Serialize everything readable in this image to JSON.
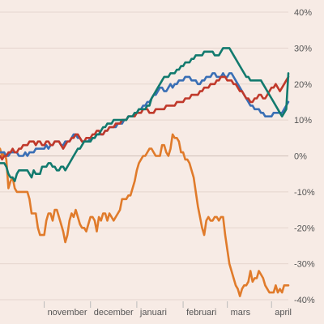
{
  "chart_data": {
    "type": "line",
    "title": "",
    "xlabel": "",
    "ylabel": "",
    "ylim": [
      -40,
      40
    ],
    "grid": true,
    "y_axis_side": "right",
    "y_ticks": [
      40,
      30,
      20,
      10,
      0,
      -10,
      -20,
      -30,
      -40
    ],
    "y_tick_labels": [
      "40%",
      "30%",
      "20%",
      "10%",
      "0%",
      "-10%",
      "-20%",
      "-30%",
      "-40%"
    ],
    "x_ticks": [
      "november",
      "december",
      "januari",
      "februari",
      "mars",
      "april"
    ],
    "x_tick_positions": [
      21,
      43,
      65,
      87,
      108,
      129
    ],
    "x_range": [
      0,
      137
    ],
    "series": [
      {
        "color": "#e07b2b",
        "values": [
          2,
          0,
          1,
          -1,
          -9,
          -7,
          -6,
          -9,
          -10,
          -10,
          -10,
          -10,
          -10,
          -10,
          -12,
          -16,
          -16,
          -16,
          -20,
          -22,
          -22,
          -22,
          -18,
          -16,
          -16,
          -18,
          -15,
          -15,
          -17,
          -19,
          -21,
          -24,
          -22,
          -18,
          -16,
          -17,
          -15,
          -17,
          -19,
          -20,
          -20,
          -21,
          -19,
          -17,
          -17,
          -18,
          -21,
          -17,
          -18,
          -16,
          -16,
          -18,
          -16,
          -17,
          -18,
          -17,
          -16,
          -15,
          -12,
          -12,
          -12,
          -11,
          -11,
          -9,
          -7,
          -4,
          -2,
          -1,
          0,
          0,
          1,
          2,
          2,
          1,
          0,
          0,
          0,
          3,
          3,
          1,
          0,
          2,
          6,
          5,
          5,
          4,
          1,
          1,
          -1,
          -1,
          -2,
          -4,
          -6,
          -10,
          -14,
          -17,
          -20,
          -22,
          -18,
          -17,
          -18,
          -18,
          -17,
          -17,
          -18,
          -17,
          -17,
          -22,
          -26,
          -30,
          -32,
          -34,
          -36,
          -37,
          -39,
          -37,
          -36,
          -36,
          -35,
          -32,
          -35,
          -34,
          -34,
          -32,
          -33,
          -34,
          -36,
          -37,
          -38,
          -38,
          -38,
          -36,
          -38,
          -37,
          -38,
          -36,
          -36,
          -36
        ]
      },
      {
        "color": "#3a6fb5",
        "values": [
          1,
          1,
          1,
          0,
          0,
          1,
          1,
          1,
          1,
          0,
          0,
          0,
          1,
          0,
          1,
          1,
          1,
          2,
          2,
          2,
          2,
          2,
          3,
          2,
          3,
          3,
          4,
          4,
          4,
          3,
          3,
          4,
          4,
          4,
          5,
          6,
          6,
          5,
          5,
          4,
          4,
          4,
          4,
          5,
          5,
          5,
          6,
          6,
          6,
          6,
          7,
          7,
          8,
          8,
          8,
          8,
          9,
          9,
          9,
          10,
          10,
          11,
          11,
          11,
          12,
          12,
          13,
          13,
          14,
          14,
          15,
          15,
          16,
          17,
          17,
          18,
          19,
          19,
          18,
          18,
          19,
          20,
          19,
          20,
          20,
          21,
          21,
          21,
          22,
          22,
          22,
          21,
          21,
          21,
          20,
          20,
          21,
          21,
          22,
          22,
          22,
          23,
          23,
          22,
          22,
          22,
          23,
          22,
          22,
          23,
          23,
          22,
          21,
          20,
          19,
          18,
          17,
          16,
          15,
          14,
          14,
          13,
          13,
          13,
          12,
          12,
          11,
          11,
          11,
          11,
          12,
          12,
          12,
          12,
          12,
          13,
          14,
          15
        ]
      },
      {
        "color": "#c0392b",
        "values": [
          0,
          -1,
          0,
          0,
          1,
          1,
          2,
          1,
          1,
          2,
          2,
          3,
          3,
          3,
          4,
          4,
          4,
          3,
          4,
          4,
          3,
          3,
          4,
          4,
          3,
          3,
          4,
          4,
          4,
          3,
          2,
          3,
          4,
          4,
          5,
          5,
          6,
          6,
          5,
          4,
          4,
          5,
          5,
          5,
          6,
          6,
          7,
          7,
          6,
          6,
          7,
          7,
          8,
          8,
          8,
          9,
          9,
          9,
          10,
          10,
          10,
          11,
          11,
          11,
          11,
          12,
          12,
          12,
          13,
          13,
          13,
          12,
          12,
          12,
          13,
          13,
          13,
          13,
          13,
          14,
          14,
          14,
          14,
          14,
          15,
          15,
          15,
          15,
          16,
          16,
          16,
          17,
          17,
          17,
          17,
          18,
          18,
          19,
          19,
          19,
          20,
          20,
          20,
          21,
          21,
          22,
          22,
          22,
          21,
          21,
          21,
          20,
          20,
          19,
          18,
          18,
          17,
          16,
          16,
          15,
          15,
          16,
          16,
          17,
          17,
          16,
          16,
          17,
          18,
          19,
          19,
          20,
          19,
          18,
          19,
          20,
          21,
          22
        ]
      },
      {
        "color": "#127a6e",
        "values": [
          -2,
          -2,
          -2,
          -3,
          -5,
          -6,
          -6,
          -7,
          -5,
          -4,
          -4,
          -4,
          -4,
          -4,
          -5,
          -6,
          -4,
          -5,
          -5,
          -5,
          -3,
          -3,
          -3,
          -2,
          -2,
          -3,
          -3,
          -4,
          -4,
          -3,
          -3,
          -4,
          -3,
          -2,
          -1,
          0,
          1,
          2,
          2,
          3,
          4,
          4,
          4,
          4,
          5,
          5,
          6,
          6,
          7,
          8,
          8,
          9,
          9,
          9,
          10,
          10,
          10,
          10,
          10,
          10,
          10,
          11,
          11,
          11,
          12,
          12,
          13,
          13,
          13,
          13,
          14,
          14,
          16,
          17,
          18,
          19,
          20,
          21,
          22,
          22,
          22,
          23,
          23,
          23,
          24,
          24,
          25,
          25,
          26,
          26,
          26,
          27,
          27,
          28,
          28,
          28,
          28,
          29,
          29,
          29,
          29,
          29,
          28,
          28,
          28,
          29,
          30,
          30,
          30,
          30,
          29,
          28,
          27,
          26,
          25,
          24,
          23,
          22,
          22,
          21,
          21,
          21,
          21,
          21,
          21,
          20,
          19,
          18,
          17,
          16,
          15,
          14,
          13,
          12,
          11,
          12,
          13,
          23
        ]
      }
    ]
  }
}
